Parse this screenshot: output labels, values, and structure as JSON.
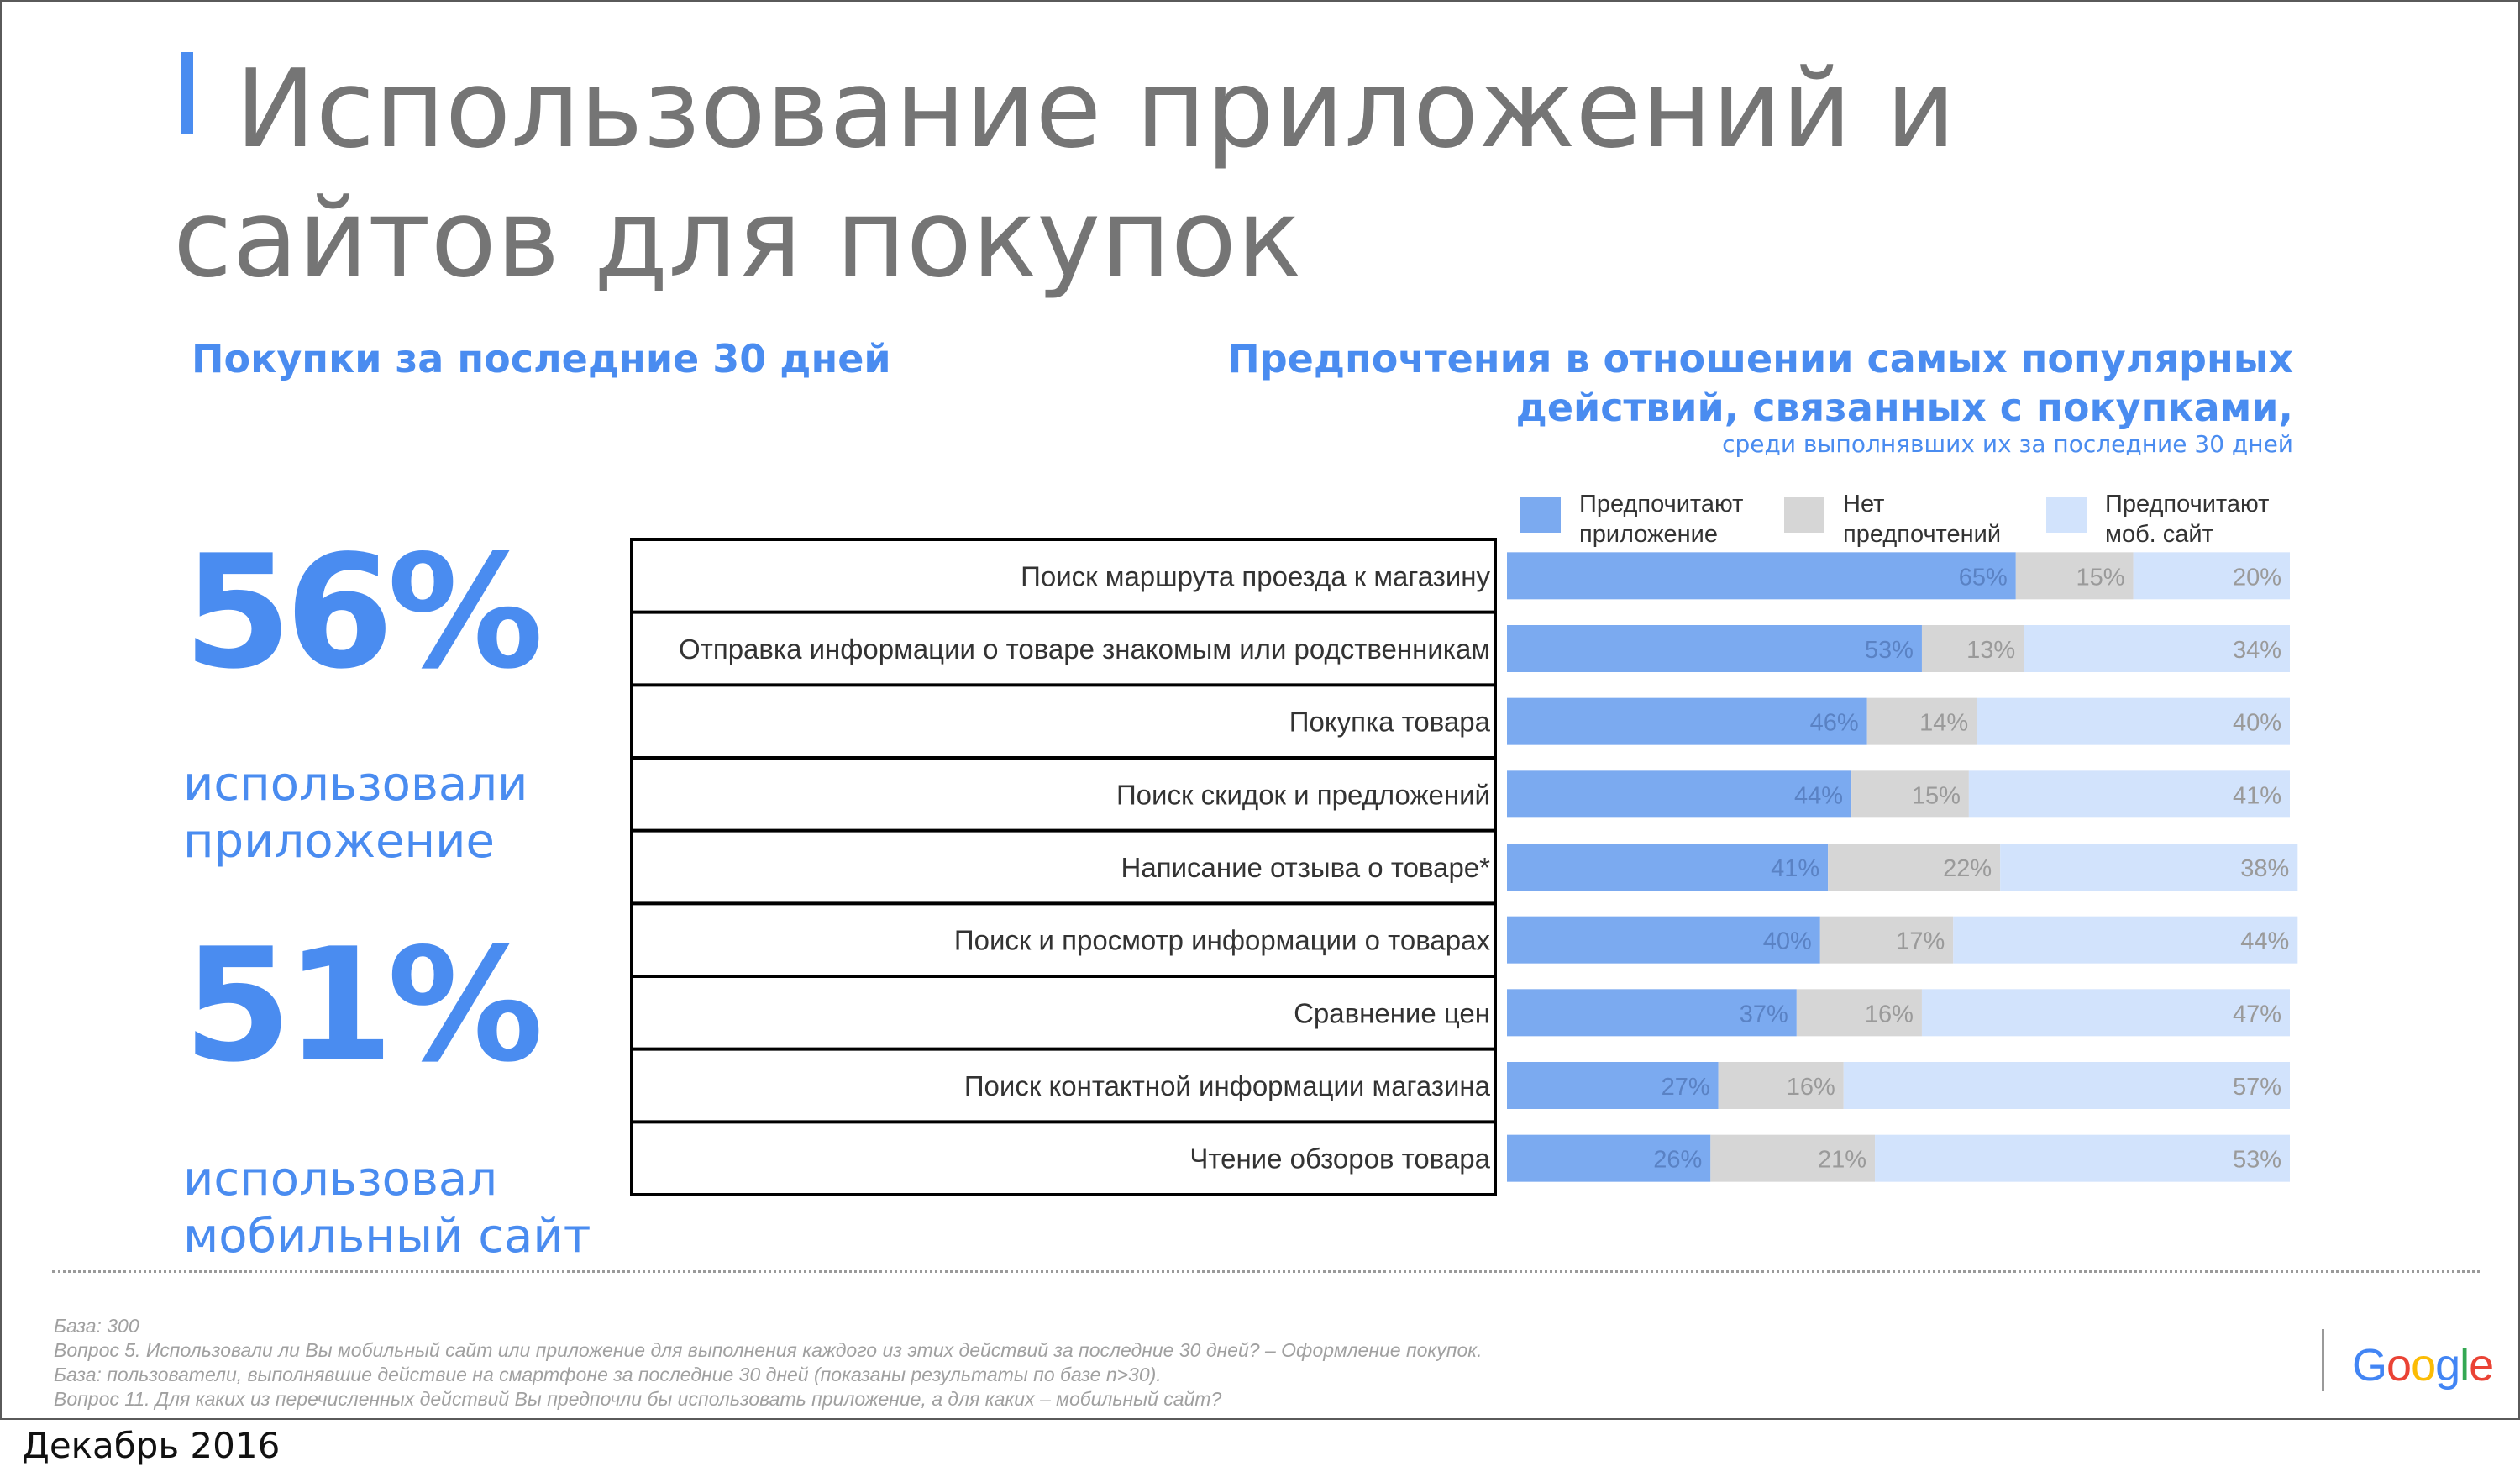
{
  "title": "Использование приложений и сайтов для покупок",
  "left": {
    "heading": "Покупки за последние 30 дней",
    "stat1_value": "56%",
    "stat1_label_line1": "использовали",
    "stat1_label_line2": "приложение",
    "stat2_value": "51%",
    "stat2_label_line1": "использовал",
    "stat2_label_line2": "мобильный сайт"
  },
  "right": {
    "heading_line1": "Предпочтения в отношении самых популярных",
    "heading_line2": "действий, связанных с покупками,",
    "subheading": "среди выполнявших их за последние 30 дней"
  },
  "legend": [
    {
      "line1": "Предпочитают",
      "line2": "приложение",
      "color": "#7baaf0"
    },
    {
      "line1": "Нет",
      "line2": "предпочтений",
      "color": "#d6d6d6"
    },
    {
      "line1": "Предпочитают",
      "line2": "моб. сайт",
      "color": "#d2e3fc"
    }
  ],
  "chart_data": {
    "type": "bar",
    "orientation": "horizontal",
    "stacked": true,
    "unit": "%",
    "categories": [
      "Поиск маршрута проезда к магазину",
      "Отправка информации о товаре знакомым или родственникам",
      "Покупка товара",
      "Поиск скидок и предложений",
      "Написание отзыва о товаре*",
      "Поиск и просмотр информации о товарах",
      "Сравнение цен",
      "Поиск контактной информации магазина",
      "Чтение обзоров товара"
    ],
    "series": [
      {
        "name": "Предпочитают приложение",
        "color": "#7baaf0",
        "values": [
          65,
          53,
          46,
          44,
          41,
          40,
          37,
          27,
          26
        ]
      },
      {
        "name": "Нет предпочтений",
        "color": "#d6d6d6",
        "values": [
          15,
          13,
          14,
          15,
          22,
          17,
          16,
          16,
          21
        ]
      },
      {
        "name": "Предпочитают моб. сайт",
        "color": "#d2e3fc",
        "values": [
          20,
          34,
          40,
          41,
          38,
          44,
          47,
          57,
          53
        ]
      }
    ],
    "xlim": [
      0,
      100
    ],
    "legend_position": "top"
  },
  "footer": {
    "notes": [
      "База: 300",
      "Вопрос 5. Использовали ли Вы мобильный сайт или приложение для выполнения каждого из этих действий за последние 30 дней? – Оформление покупок.",
      "База: пользователи, выполнявшие действие на смартфоне за последние 30 дней (показаны результаты по базе n>30).",
      "Вопрос 11. Для каких из перечисленных действий Вы предпочли бы использовать приложение, а для каких – мобильный сайт?"
    ],
    "logo": [
      "G",
      "o",
      "o",
      "g",
      "l",
      "e"
    ],
    "logo_colors": [
      "#4285f4",
      "#ea4335",
      "#fbbc05",
      "#4285f4",
      "#34a853",
      "#ea4335"
    ],
    "date": "Декабрь 2016"
  }
}
